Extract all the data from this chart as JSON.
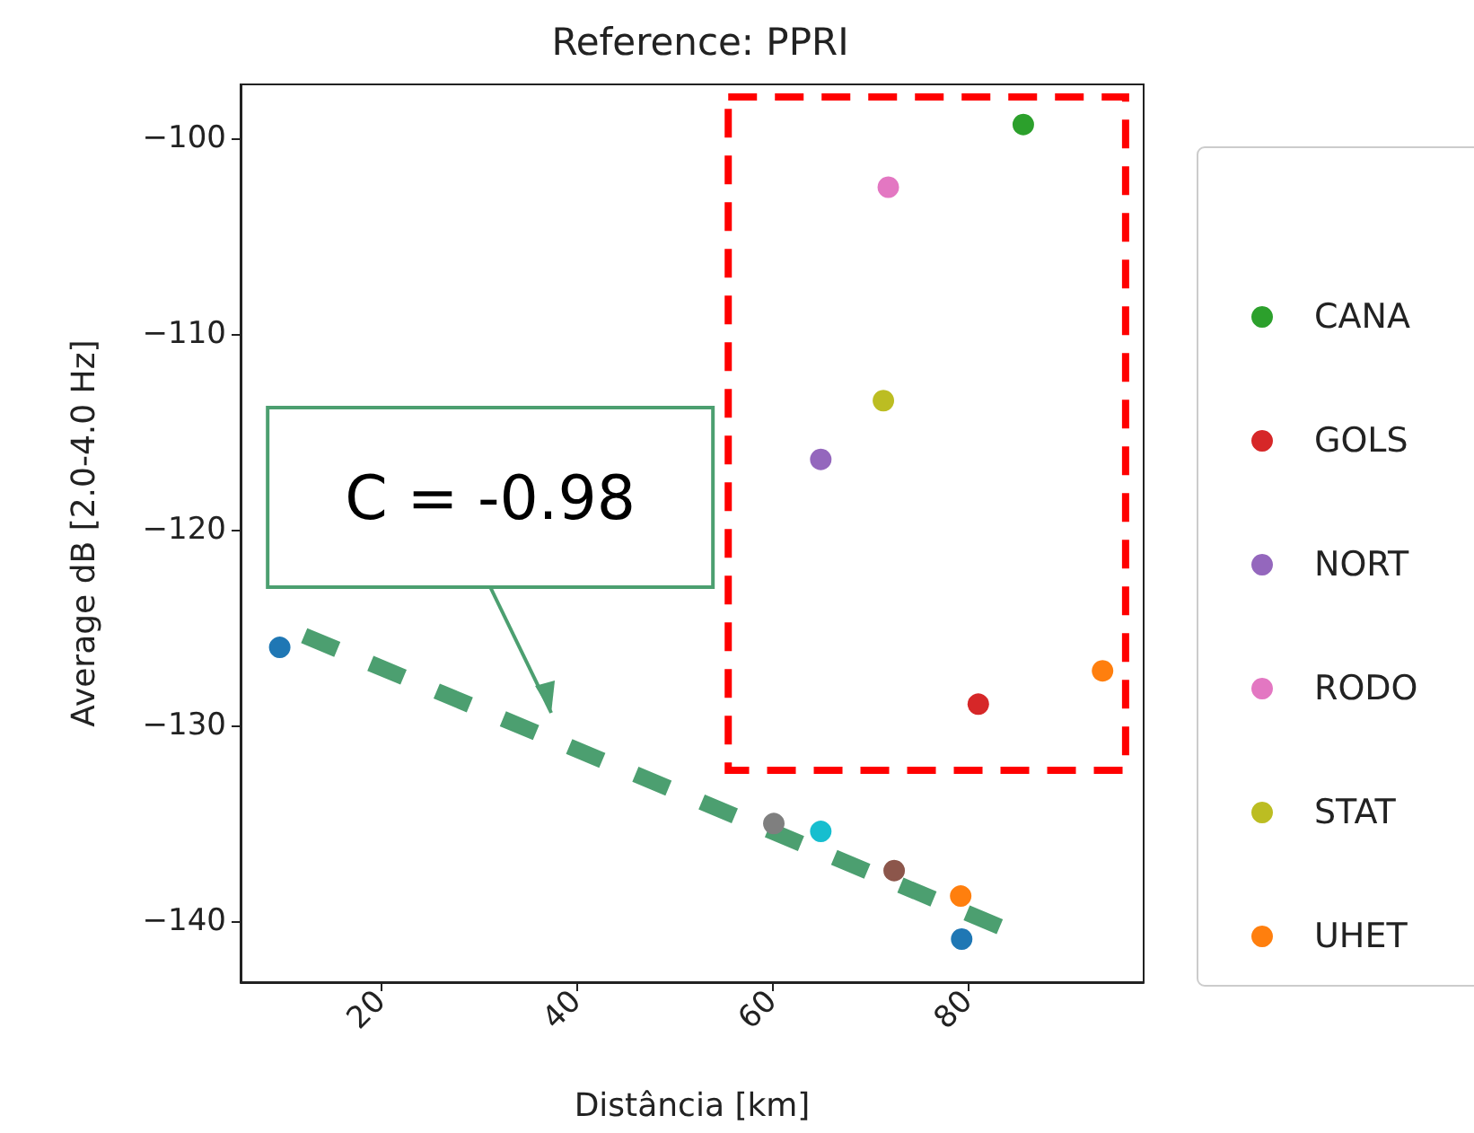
{
  "chart_data": {
    "type": "scatter",
    "title": "Reference: PPRI",
    "xlabel": "Distância [km]",
    "ylabel": "Average dB [2.0-4.0 Hz]",
    "xlim": [
      5.7,
      98
    ],
    "xticks": [
      20,
      40,
      60,
      80
    ],
    "ylim": [
      -143.1,
      -97.25
    ],
    "yticks": [
      -100,
      -110,
      -120,
      -130,
      -140
    ],
    "grid": false,
    "legend": "right",
    "marker": "circle",
    "annotations": [
      "C = -0.98"
    ],
    "series": [
      {
        "name": "CANA",
        "color": "#2ca02c",
        "x": [
          85.7
        ],
        "values": [
          -99.3
        ]
      },
      {
        "name": "GOLS",
        "color": "#d62728",
        "x": [
          81.1
        ],
        "values": [
          -128.9
        ]
      },
      {
        "name": "NORT",
        "color": "#9467bd",
        "x": [
          65.0
        ],
        "values": [
          -116.4
        ]
      },
      {
        "name": "RODO",
        "color": "#e377c2",
        "x": [
          71.9
        ],
        "values": [
          -102.5
        ]
      },
      {
        "name": "STAT",
        "color": "#bcbd22",
        "x": [
          71.4
        ],
        "values": [
          -113.4
        ]
      },
      {
        "name": "UHET",
        "color": "#ff7f0e",
        "x": [
          93.8,
          79.3
        ],
        "values": [
          -127.2,
          -138.7
        ]
      },
      {
        "color": "#1f77b4",
        "x": [
          9.7,
          79.4
        ],
        "values": [
          -126.0,
          -140.9
        ]
      },
      {
        "color": "#7f7f7f",
        "x": [
          60.2
        ],
        "values": [
          -135.0
        ]
      },
      {
        "color": "#17becf",
        "x": [
          65.0
        ],
        "values": [
          -135.4
        ]
      },
      {
        "color": "#8c564b",
        "x": [
          72.5
        ],
        "values": [
          -137.4
        ]
      },
      {
        "type": "line",
        "color": "#4c9f70",
        "line_style": "dashed",
        "marker": "none",
        "x": [
          12.2,
          84.4
        ],
        "values": [
          -125.4,
          -140.5
        ]
      }
    ]
  }
}
